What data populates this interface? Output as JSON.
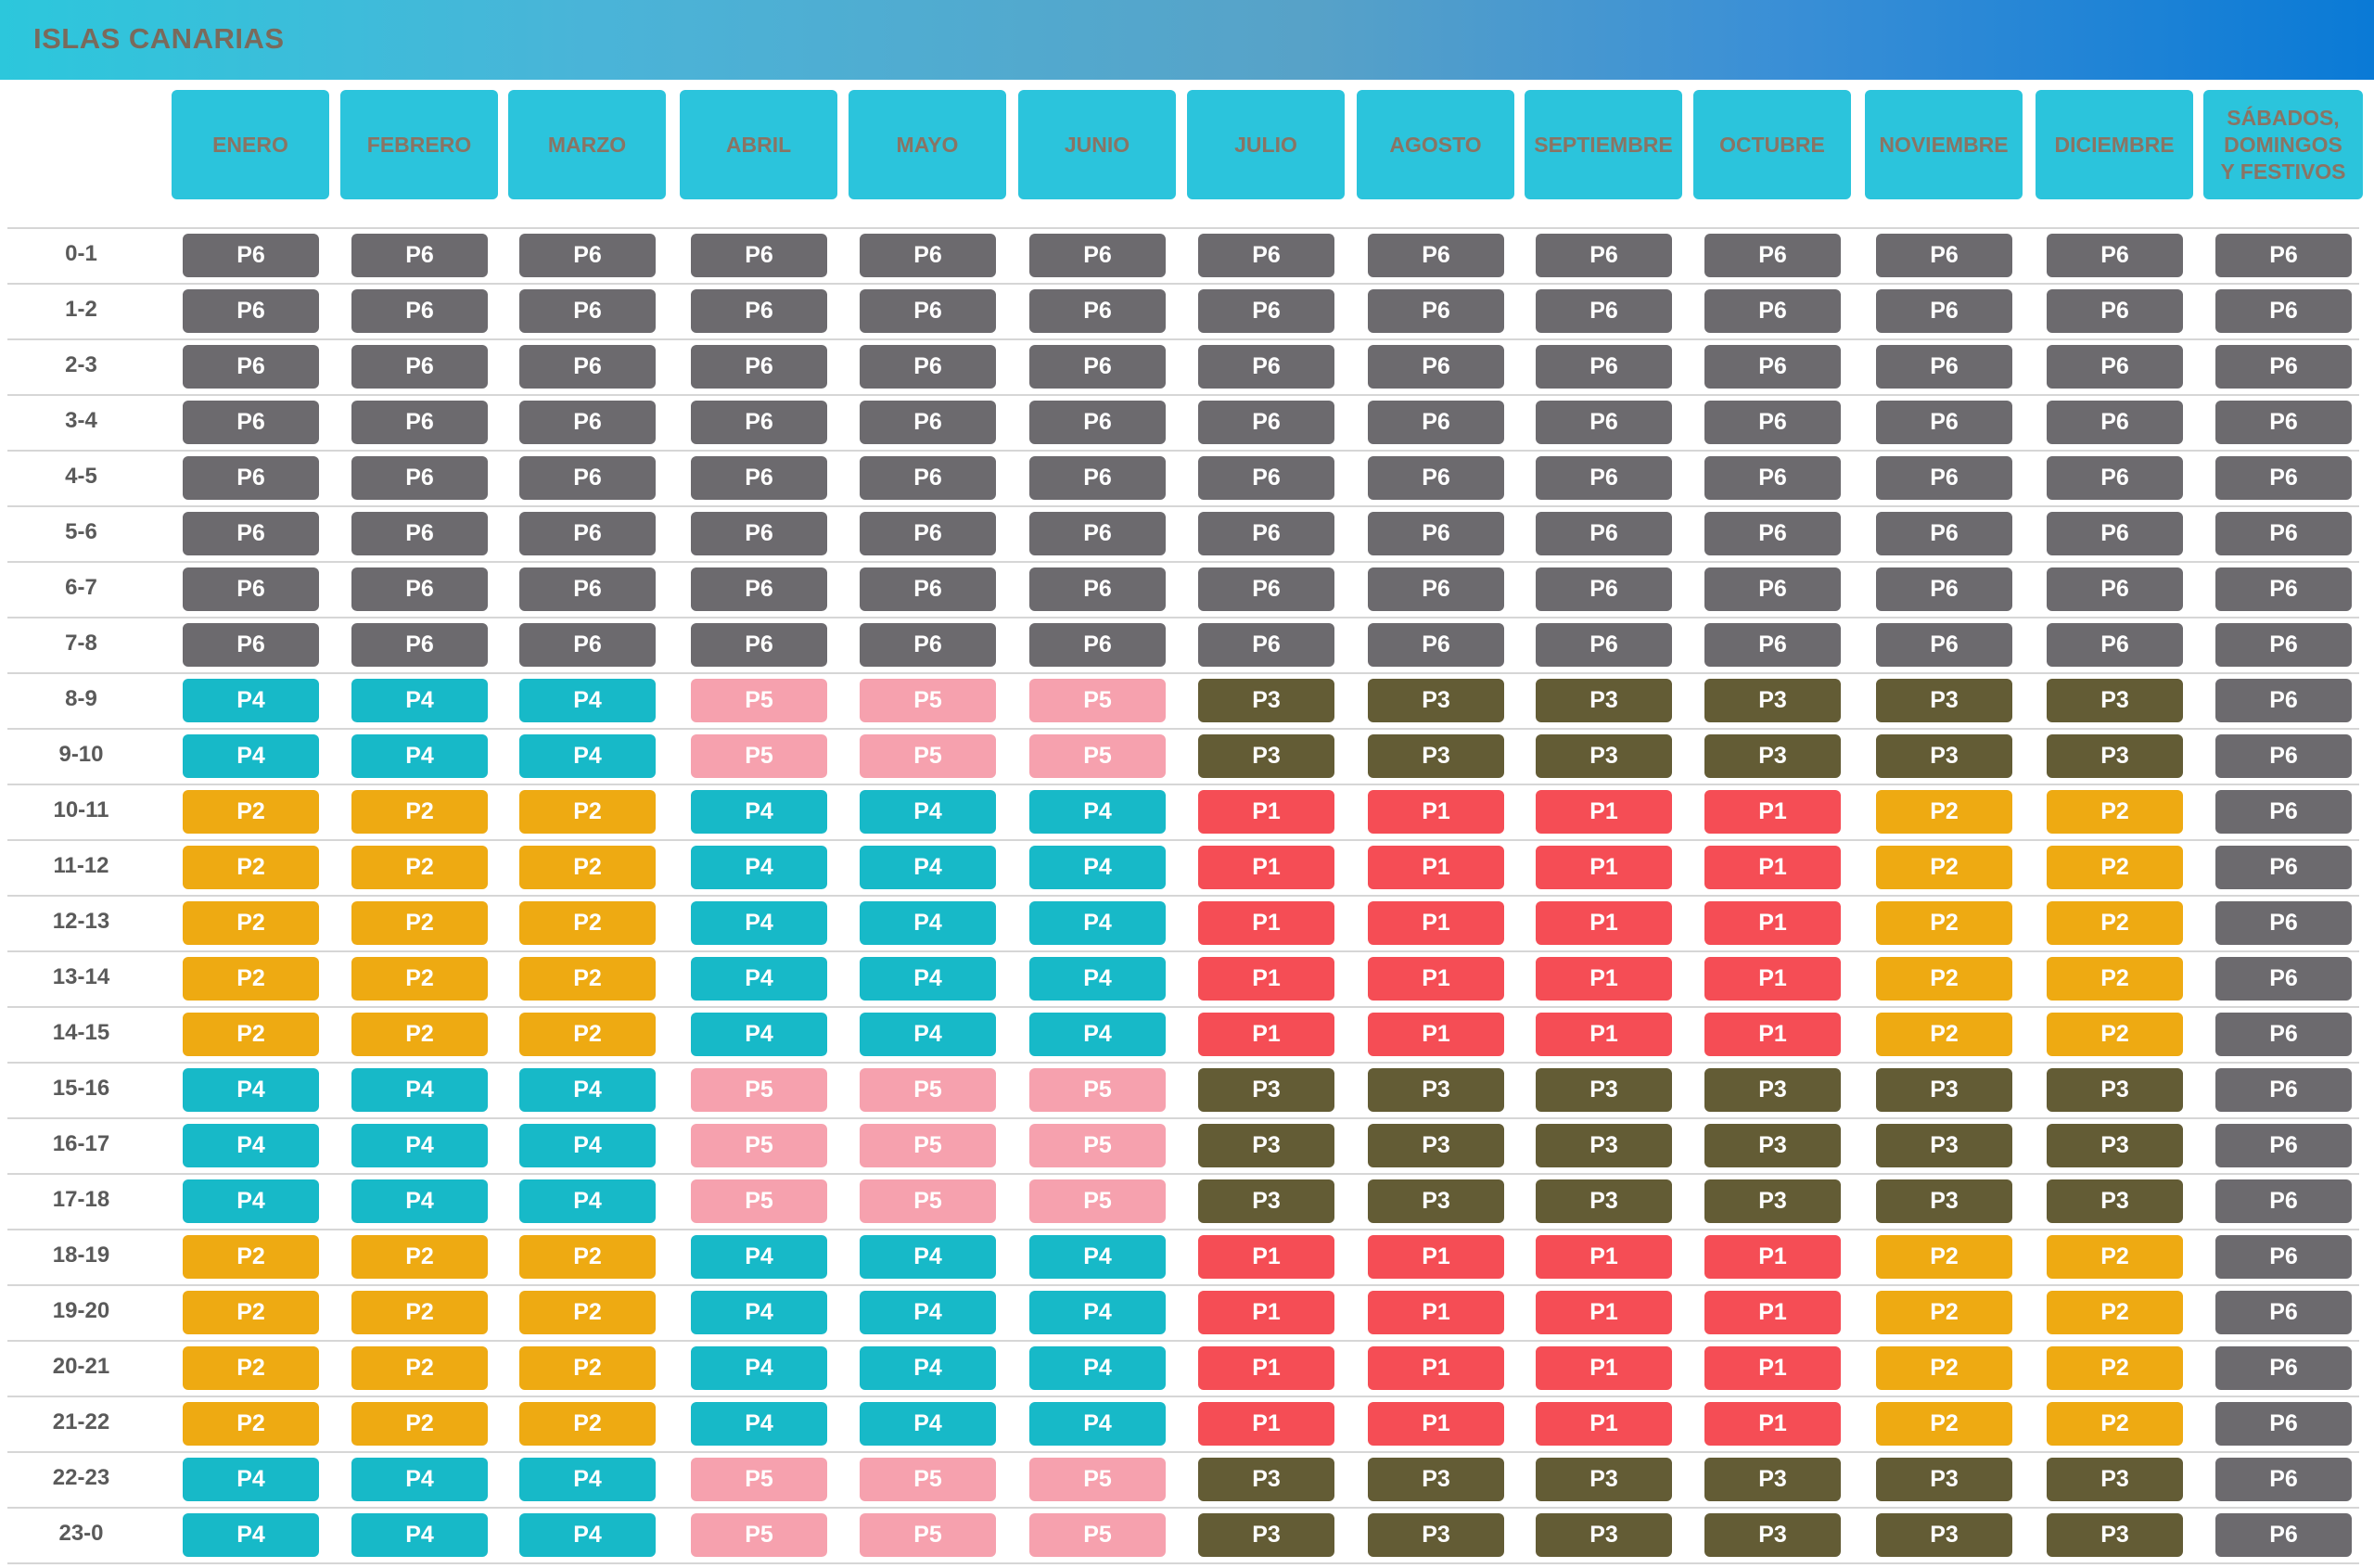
{
  "title": "ISLAS CANARIAS",
  "columns": [
    "ENERO",
    "FEBRERO",
    "MARZO",
    "ABRIL",
    "MAYO",
    "JUNIO",
    "JULIO",
    "AGOSTO",
    "SEPTIEMBRE",
    "OCTUBRE",
    "NOVIEMBRE",
    "DICIEMBRE",
    "SÁBADOS,\nDOMINGOS\nY FESTIVOS"
  ],
  "period_colors": {
    "P1": "#f54d55",
    "P2": "#eeaa12",
    "P3": "#635c35",
    "P4": "#17b9c8",
    "P5": "#f6a1ae",
    "P6": "#6c6a6e"
  },
  "rows": [
    {
      "hour": "0-1",
      "periods": [
        "P6",
        "P6",
        "P6",
        "P6",
        "P6",
        "P6",
        "P6",
        "P6",
        "P6",
        "P6",
        "P6",
        "P6",
        "P6"
      ]
    },
    {
      "hour": "1-2",
      "periods": [
        "P6",
        "P6",
        "P6",
        "P6",
        "P6",
        "P6",
        "P6",
        "P6",
        "P6",
        "P6",
        "P6",
        "P6",
        "P6"
      ]
    },
    {
      "hour": "2-3",
      "periods": [
        "P6",
        "P6",
        "P6",
        "P6",
        "P6",
        "P6",
        "P6",
        "P6",
        "P6",
        "P6",
        "P6",
        "P6",
        "P6"
      ]
    },
    {
      "hour": "3-4",
      "periods": [
        "P6",
        "P6",
        "P6",
        "P6",
        "P6",
        "P6",
        "P6",
        "P6",
        "P6",
        "P6",
        "P6",
        "P6",
        "P6"
      ]
    },
    {
      "hour": "4-5",
      "periods": [
        "P6",
        "P6",
        "P6",
        "P6",
        "P6",
        "P6",
        "P6",
        "P6",
        "P6",
        "P6",
        "P6",
        "P6",
        "P6"
      ]
    },
    {
      "hour": "5-6",
      "periods": [
        "P6",
        "P6",
        "P6",
        "P6",
        "P6",
        "P6",
        "P6",
        "P6",
        "P6",
        "P6",
        "P6",
        "P6",
        "P6"
      ]
    },
    {
      "hour": "6-7",
      "periods": [
        "P6",
        "P6",
        "P6",
        "P6",
        "P6",
        "P6",
        "P6",
        "P6",
        "P6",
        "P6",
        "P6",
        "P6",
        "P6"
      ]
    },
    {
      "hour": "7-8",
      "periods": [
        "P6",
        "P6",
        "P6",
        "P6",
        "P6",
        "P6",
        "P6",
        "P6",
        "P6",
        "P6",
        "P6",
        "P6",
        "P6"
      ]
    },
    {
      "hour": "8-9",
      "periods": [
        "P4",
        "P4",
        "P4",
        "P5",
        "P5",
        "P5",
        "P3",
        "P3",
        "P3",
        "P3",
        "P3",
        "P3",
        "P6"
      ]
    },
    {
      "hour": "9-10",
      "periods": [
        "P4",
        "P4",
        "P4",
        "P5",
        "P5",
        "P5",
        "P3",
        "P3",
        "P3",
        "P3",
        "P3",
        "P3",
        "P6"
      ]
    },
    {
      "hour": "10-11",
      "periods": [
        "P2",
        "P2",
        "P2",
        "P4",
        "P4",
        "P4",
        "P1",
        "P1",
        "P1",
        "P1",
        "P2",
        "P2",
        "P6"
      ]
    },
    {
      "hour": "11-12",
      "periods": [
        "P2",
        "P2",
        "P2",
        "P4",
        "P4",
        "P4",
        "P1",
        "P1",
        "P1",
        "P1",
        "P2",
        "P2",
        "P6"
      ]
    },
    {
      "hour": "12-13",
      "periods": [
        "P2",
        "P2",
        "P2",
        "P4",
        "P4",
        "P4",
        "P1",
        "P1",
        "P1",
        "P1",
        "P2",
        "P2",
        "P6"
      ]
    },
    {
      "hour": "13-14",
      "periods": [
        "P2",
        "P2",
        "P2",
        "P4",
        "P4",
        "P4",
        "P1",
        "P1",
        "P1",
        "P1",
        "P2",
        "P2",
        "P6"
      ]
    },
    {
      "hour": "14-15",
      "periods": [
        "P2",
        "P2",
        "P2",
        "P4",
        "P4",
        "P4",
        "P1",
        "P1",
        "P1",
        "P1",
        "P2",
        "P2",
        "P6"
      ]
    },
    {
      "hour": "15-16",
      "periods": [
        "P4",
        "P4",
        "P4",
        "P5",
        "P5",
        "P5",
        "P3",
        "P3",
        "P3",
        "P3",
        "P3",
        "P3",
        "P6"
      ]
    },
    {
      "hour": "16-17",
      "periods": [
        "P4",
        "P4",
        "P4",
        "P5",
        "P5",
        "P5",
        "P3",
        "P3",
        "P3",
        "P3",
        "P3",
        "P3",
        "P6"
      ]
    },
    {
      "hour": "17-18",
      "periods": [
        "P4",
        "P4",
        "P4",
        "P5",
        "P5",
        "P5",
        "P3",
        "P3",
        "P3",
        "P3",
        "P3",
        "P3",
        "P6"
      ]
    },
    {
      "hour": "18-19",
      "periods": [
        "P2",
        "P2",
        "P2",
        "P4",
        "P4",
        "P4",
        "P1",
        "P1",
        "P1",
        "P1",
        "P2",
        "P2",
        "P6"
      ]
    },
    {
      "hour": "19-20",
      "periods": [
        "P2",
        "P2",
        "P2",
        "P4",
        "P4",
        "P4",
        "P1",
        "P1",
        "P1",
        "P1",
        "P2",
        "P2",
        "P6"
      ]
    },
    {
      "hour": "20-21",
      "periods": [
        "P2",
        "P2",
        "P2",
        "P4",
        "P4",
        "P4",
        "P1",
        "P1",
        "P1",
        "P1",
        "P2",
        "P2",
        "P6"
      ]
    },
    {
      "hour": "21-22",
      "periods": [
        "P2",
        "P2",
        "P2",
        "P4",
        "P4",
        "P4",
        "P1",
        "P1",
        "P1",
        "P1",
        "P2",
        "P2",
        "P6"
      ]
    },
    {
      "hour": "22-23",
      "periods": [
        "P4",
        "P4",
        "P4",
        "P5",
        "P5",
        "P5",
        "P3",
        "P3",
        "P3",
        "P3",
        "P3",
        "P3",
        "P6"
      ]
    },
    {
      "hour": "23-0",
      "periods": [
        "P4",
        "P4",
        "P4",
        "P5",
        "P5",
        "P5",
        "P3",
        "P3",
        "P3",
        "P3",
        "P3",
        "P3",
        "P6"
      ]
    }
  ]
}
